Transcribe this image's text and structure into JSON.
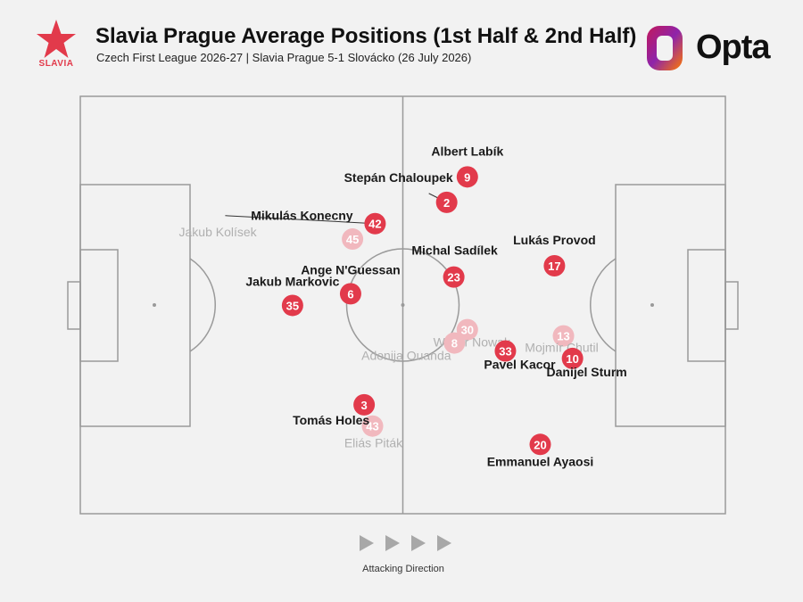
{
  "header": {
    "club_name": "SLAVIA",
    "title": "Slavia Prague Average Positions (1st Half & 2nd Half)",
    "subtitle": "Czech First League 2026-27 | Slavia Prague 5-1 Slovácko (26 July 2026)",
    "brand": "Opta",
    "club_logo_icon": "red-star-icon",
    "brand_logo_icon": "opta-logo-icon"
  },
  "footer": {
    "direction_label": "Attacking Direction",
    "direction_icon": "triangle-right-icon"
  },
  "colors": {
    "first_half": "#e23a4b",
    "second_half": "#f1b8be",
    "pitch_line": "#9a9a9a",
    "label_dark": "#1a1a1a",
    "label_light": "#b0b0b0"
  },
  "chart_data": {
    "type": "scatter",
    "title": "Slavia Prague Average Positions (1st Half & 2nd Half)",
    "subtitle": "Czech First League 2026-27 | Slavia Prague 5-1 Slovácko (26 July 2026)",
    "xlim": [
      0,
      100
    ],
    "ylim": [
      0,
      100
    ],
    "note": "Attacking Direction",
    "series": [
      {
        "points": [
          {
            "number": 9,
            "name": "Albert Labík",
            "x": 60.0,
            "y": 19.3
          },
          {
            "number": 2,
            "name": "Stepán Chaloupek",
            "x": 56.8,
            "y": 25.4
          },
          {
            "number": 42,
            "name": "Mikulás Konecny",
            "x": 45.7,
            "y": 30.5
          },
          {
            "number": 17,
            "name": "Lukás Provod",
            "x": 73.5,
            "y": 40.6
          },
          {
            "number": 23,
            "name": "Michal Sadílek",
            "x": 57.9,
            "y": 43.3
          },
          {
            "number": 6,
            "name": "Ange N'Guessan",
            "x": 41.9,
            "y": 47.3
          },
          {
            "number": 35,
            "name": "Jakub Markovic",
            "x": 32.9,
            "y": 50.1
          },
          {
            "number": 33,
            "name": "Pavel Kacor",
            "x": 65.9,
            "y": 61.0
          },
          {
            "number": 10,
            "name": "Danijel Sturm",
            "x": 76.3,
            "y": 62.8
          },
          {
            "number": 3,
            "name": "Tomás Holes",
            "x": 44.0,
            "y": 73.9
          },
          {
            "number": 20,
            "name": "Emmanuel Ayaosi",
            "x": 71.3,
            "y": 83.4
          }
        ]
      },
      {
        "points": [
          {
            "number": 45,
            "name": "Jakub Kolísek",
            "x": 42.2,
            "y": 34.2
          },
          {
            "number": 30,
            "name": "Wiktor Nowak",
            "x": 60.0,
            "y": 55.9
          },
          {
            "number": 13,
            "name": "Mojmír Chutil",
            "x": 74.9,
            "y": 57.4
          },
          {
            "number": 8,
            "name": "Adonija Ouanda",
            "x": 58.0,
            "y": 59.1
          },
          {
            "number": 43,
            "name": "Eliás Piták",
            "x": 45.3,
            "y": 79.0
          }
        ]
      }
    ]
  }
}
